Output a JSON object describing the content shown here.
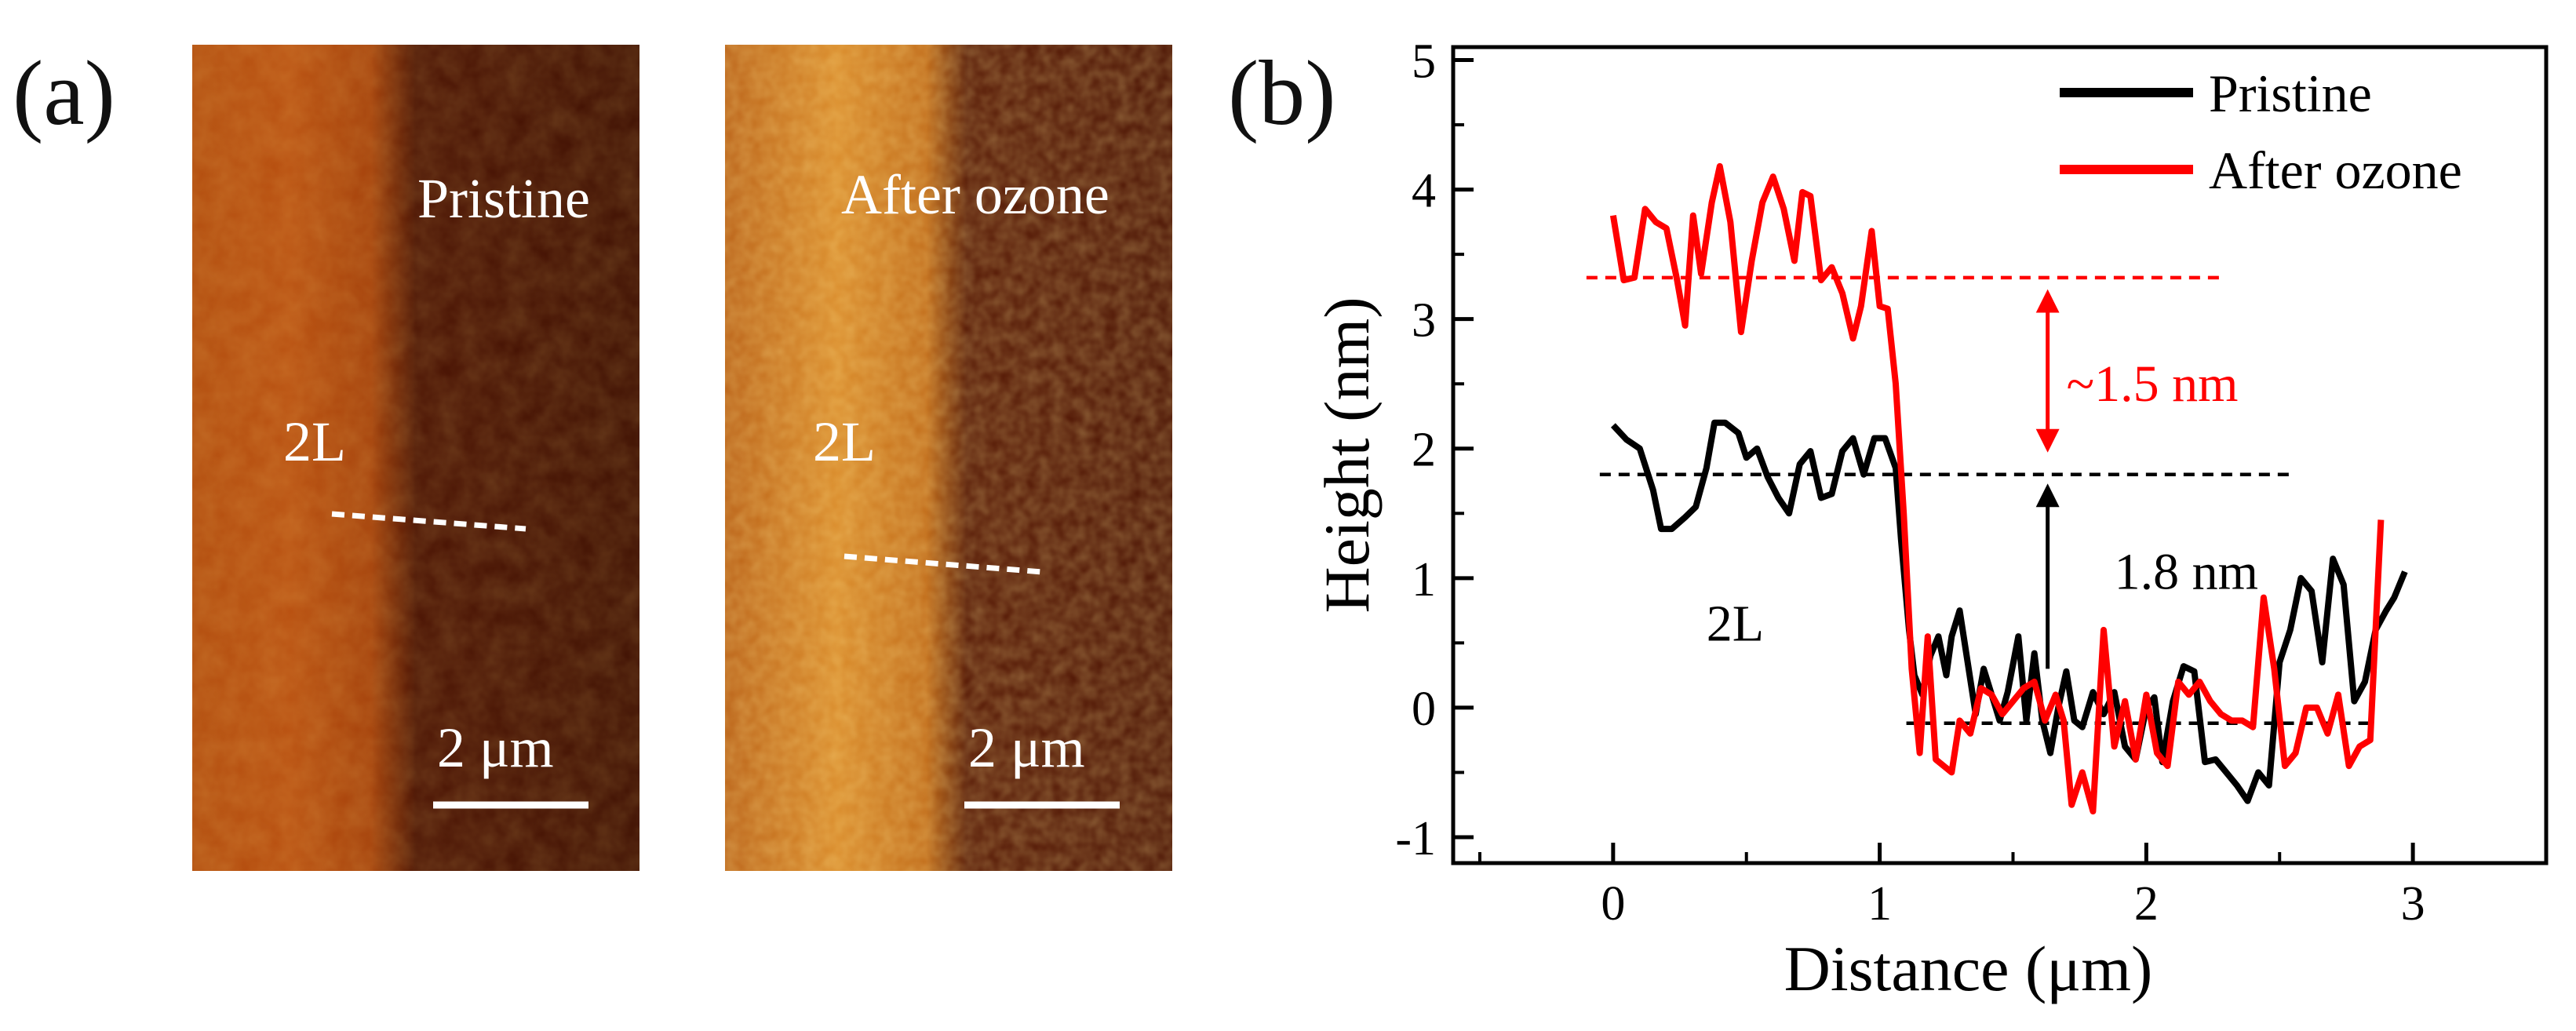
{
  "panel_a": {
    "label": "(a)",
    "images": [
      {
        "title": "Pristine",
        "layer_label": "2L",
        "scale_bar": "2 μm"
      },
      {
        "title": "After ozone",
        "layer_label": "2L",
        "scale_bar": "2 μm"
      }
    ]
  },
  "panel_b": {
    "label": "(b)"
  },
  "chart_data": {
    "type": "line",
    "xlabel": "Distance (μm)",
    "ylabel": "Height (nm)",
    "xlim": [
      -0.6,
      3.5
    ],
    "ylim": [
      -1.2,
      5.1
    ],
    "xticks": [
      "0",
      "1",
      "2",
      "3"
    ],
    "xtick_values": [
      0,
      1,
      2,
      3
    ],
    "yticks": [
      "-1",
      "0",
      "1",
      "2",
      "3",
      "4",
      "5"
    ],
    "ytick_values": [
      -1,
      0,
      1,
      2,
      3,
      4,
      5
    ],
    "legend_position": "top-right",
    "series": [
      {
        "name": "Pristine",
        "color": "#000000",
        "points": [
          [
            0.0,
            2.18
          ],
          [
            0.05,
            2.07
          ],
          [
            0.1,
            2.0
          ],
          [
            0.15,
            1.68
          ],
          [
            0.18,
            1.38
          ],
          [
            0.22,
            1.38
          ],
          [
            0.27,
            1.47
          ],
          [
            0.31,
            1.55
          ],
          [
            0.35,
            1.85
          ],
          [
            0.38,
            2.2
          ],
          [
            0.42,
            2.2
          ],
          [
            0.47,
            2.12
          ],
          [
            0.5,
            1.93
          ],
          [
            0.54,
            2.0
          ],
          [
            0.58,
            1.78
          ],
          [
            0.62,
            1.62
          ],
          [
            0.66,
            1.5
          ],
          [
            0.7,
            1.88
          ],
          [
            0.74,
            1.98
          ],
          [
            0.78,
            1.62
          ],
          [
            0.82,
            1.65
          ],
          [
            0.86,
            1.98
          ],
          [
            0.9,
            2.08
          ],
          [
            0.94,
            1.8
          ],
          [
            0.98,
            2.08
          ],
          [
            1.02,
            2.08
          ],
          [
            1.06,
            1.85
          ],
          [
            1.08,
            1.3
          ],
          [
            1.11,
            0.6
          ],
          [
            1.13,
            0.25
          ],
          [
            1.16,
            0.1
          ],
          [
            1.19,
            0.4
          ],
          [
            1.22,
            0.55
          ],
          [
            1.25,
            0.25
          ],
          [
            1.27,
            0.55
          ],
          [
            1.3,
            0.75
          ],
          [
            1.33,
            0.35
          ],
          [
            1.36,
            -0.05
          ],
          [
            1.39,
            0.3
          ],
          [
            1.42,
            0.1
          ],
          [
            1.45,
            -0.1
          ],
          [
            1.48,
            0.12
          ],
          [
            1.52,
            0.55
          ],
          [
            1.55,
            -0.1
          ],
          [
            1.58,
            0.42
          ],
          [
            1.61,
            -0.1
          ],
          [
            1.64,
            -0.35
          ],
          [
            1.67,
            0.0
          ],
          [
            1.7,
            0.28
          ],
          [
            1.73,
            -0.1
          ],
          [
            1.76,
            -0.15
          ],
          [
            1.8,
            0.12
          ],
          [
            1.84,
            -0.05
          ],
          [
            1.88,
            0.12
          ],
          [
            1.92,
            -0.3
          ],
          [
            1.96,
            -0.4
          ],
          [
            2.0,
            0.0
          ],
          [
            2.03,
            0.08
          ],
          [
            2.06,
            -0.42
          ],
          [
            2.1,
            0.05
          ],
          [
            2.14,
            0.32
          ],
          [
            2.18,
            0.28
          ],
          [
            2.22,
            -0.42
          ],
          [
            2.26,
            -0.4
          ],
          [
            2.3,
            -0.5
          ],
          [
            2.34,
            -0.6
          ],
          [
            2.38,
            -0.72
          ],
          [
            2.42,
            -0.5
          ],
          [
            2.46,
            -0.6
          ],
          [
            2.5,
            0.35
          ],
          [
            2.54,
            0.6
          ],
          [
            2.58,
            1.0
          ],
          [
            2.62,
            0.9
          ],
          [
            2.66,
            0.35
          ],
          [
            2.7,
            1.15
          ],
          [
            2.74,
            0.95
          ],
          [
            2.78,
            0.05
          ],
          [
            2.82,
            0.2
          ],
          [
            2.86,
            0.6
          ],
          [
            2.9,
            0.75
          ],
          [
            2.93,
            0.85
          ],
          [
            2.97,
            1.05
          ]
        ]
      },
      {
        "name": "After ozone",
        "color": "#ff0000",
        "points": [
          [
            0.0,
            3.8
          ],
          [
            0.04,
            3.3
          ],
          [
            0.08,
            3.32
          ],
          [
            0.12,
            3.85
          ],
          [
            0.16,
            3.75
          ],
          [
            0.2,
            3.7
          ],
          [
            0.24,
            3.3
          ],
          [
            0.27,
            2.95
          ],
          [
            0.3,
            3.8
          ],
          [
            0.33,
            3.35
          ],
          [
            0.37,
            3.9
          ],
          [
            0.4,
            4.18
          ],
          [
            0.44,
            3.75
          ],
          [
            0.48,
            2.9
          ],
          [
            0.52,
            3.45
          ],
          [
            0.56,
            3.9
          ],
          [
            0.6,
            4.1
          ],
          [
            0.64,
            3.85
          ],
          [
            0.68,
            3.45
          ],
          [
            0.71,
            3.98
          ],
          [
            0.74,
            3.95
          ],
          [
            0.78,
            3.3
          ],
          [
            0.82,
            3.4
          ],
          [
            0.86,
            3.2
          ],
          [
            0.9,
            2.85
          ],
          [
            0.93,
            3.1
          ],
          [
            0.97,
            3.68
          ],
          [
            1.0,
            3.1
          ],
          [
            1.03,
            3.08
          ],
          [
            1.06,
            2.5
          ],
          [
            1.09,
            1.5
          ],
          [
            1.12,
            0.3
          ],
          [
            1.15,
            -0.35
          ],
          [
            1.18,
            0.55
          ],
          [
            1.21,
            -0.4
          ],
          [
            1.24,
            -0.45
          ],
          [
            1.27,
            -0.5
          ],
          [
            1.3,
            -0.1
          ],
          [
            1.34,
            -0.2
          ],
          [
            1.38,
            0.15
          ],
          [
            1.42,
            0.1
          ],
          [
            1.46,
            -0.05
          ],
          [
            1.5,
            0.05
          ],
          [
            1.54,
            0.15
          ],
          [
            1.58,
            0.2
          ],
          [
            1.62,
            -0.1
          ],
          [
            1.66,
            0.1
          ],
          [
            1.69,
            -0.1
          ],
          [
            1.72,
            -0.75
          ],
          [
            1.76,
            -0.5
          ],
          [
            1.8,
            -0.8
          ],
          [
            1.84,
            0.6
          ],
          [
            1.88,
            -0.3
          ],
          [
            1.92,
            0.05
          ],
          [
            1.96,
            -0.4
          ],
          [
            2.0,
            0.1
          ],
          [
            2.04,
            -0.35
          ],
          [
            2.08,
            -0.45
          ],
          [
            2.12,
            0.2
          ],
          [
            2.16,
            0.1
          ],
          [
            2.2,
            0.2
          ],
          [
            2.24,
            0.05
          ],
          [
            2.28,
            -0.05
          ],
          [
            2.32,
            -0.1
          ],
          [
            2.36,
            -0.1
          ],
          [
            2.4,
            -0.15
          ],
          [
            2.44,
            0.85
          ],
          [
            2.48,
            0.3
          ],
          [
            2.52,
            -0.45
          ],
          [
            2.56,
            -0.35
          ],
          [
            2.6,
            0.0
          ],
          [
            2.64,
            0.0
          ],
          [
            2.68,
            -0.2
          ],
          [
            2.72,
            0.1
          ],
          [
            2.76,
            -0.45
          ],
          [
            2.8,
            -0.3
          ],
          [
            2.84,
            -0.25
          ],
          [
            2.88,
            1.45
          ]
        ]
      }
    ],
    "reference_lines": [
      {
        "color": "#ff0000",
        "y": 3.32,
        "x_from": -0.1,
        "x_to": 2.28
      },
      {
        "color": "#000000",
        "y": 1.8,
        "x_from": -0.05,
        "x_to": 2.55
      },
      {
        "color": "#000000",
        "y": -0.12,
        "x_from": 1.1,
        "x_to": 2.85
      }
    ],
    "annotations": [
      {
        "text": "~1.5 nm",
        "color": "#ff0000",
        "arrow": "double",
        "x": 1.63,
        "y_from": 2.0,
        "y_to": 3.2,
        "label_x": 1.7,
        "label_y": 2.5
      },
      {
        "text": "1.8 nm",
        "color": "#000000",
        "arrow": "up",
        "x": 1.63,
        "y_from": 0.3,
        "y_to": 1.7,
        "label_x": 1.88,
        "label_y": 1.05
      },
      {
        "text": "2L",
        "color": "#000000",
        "label_x": 0.35,
        "label_y": 0.65
      }
    ]
  }
}
